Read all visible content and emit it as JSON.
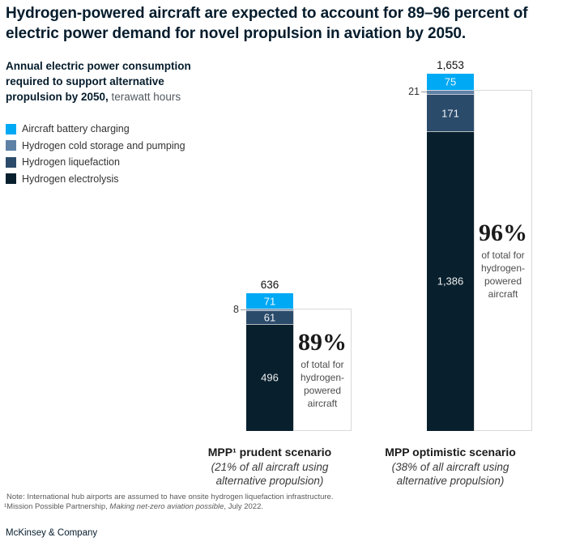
{
  "title": "Hydrogen-powered aircraft are expected to account for 89–96 percent of electric power demand for novel propulsion in aviation by 2050.",
  "subtitle": {
    "bold": "Annual electric power consumption required to support alternative propulsion by 2050,",
    "unit": " terawatt hours"
  },
  "legend": [
    {
      "name": "Aircraft battery charging",
      "color": "#00A9F4"
    },
    {
      "name": "Hydrogen cold storage and pumping",
      "color": "#5E81A6"
    },
    {
      "name": "Hydrogen liquefaction",
      "color": "#2B4B6B"
    },
    {
      "name": "Hydrogen electrolysis",
      "color": "#081F2D"
    }
  ],
  "chart_data": {
    "type": "bar",
    "stacked": true,
    "title": "Annual electric power consumption required to support alternative propulsion by 2050",
    "unit": "terawatt hours",
    "categories": [
      "MPP¹ prudent scenario",
      "MPP optimistic scenario"
    ],
    "category_notes": [
      "(21% of all aircraft using alternative propulsion)",
      "(38% of all aircraft using alternative propulsion)"
    ],
    "series": [
      {
        "name": "Aircraft battery charging",
        "color": "#00A9F4",
        "values": [
          71,
          75
        ],
        "labels": [
          "71",
          "75"
        ],
        "label_position": "inside"
      },
      {
        "name": "Hydrogen cold storage and pumping",
        "color": "#5E81A6",
        "values": [
          8,
          21
        ],
        "labels": [
          "8",
          "21"
        ],
        "label_position": "outside-left"
      },
      {
        "name": "Hydrogen liquefaction",
        "color": "#2B4B6B",
        "values": [
          61,
          171
        ],
        "labels": [
          "61",
          "171"
        ],
        "label_position": "inside"
      },
      {
        "name": "Hydrogen electrolysis",
        "color": "#081F2D",
        "values": [
          496,
          1386
        ],
        "labels": [
          "496",
          "1,386"
        ],
        "label_position": "inside"
      }
    ],
    "totals": [
      "636",
      "1,653"
    ],
    "annotations": [
      {
        "percent": "89%",
        "caption": "of total for hydrogen-powered aircraft"
      },
      {
        "percent": "96%",
        "caption": "of total for hydrogen-powered aircraft"
      }
    ],
    "ylim": [
      0,
      1653
    ],
    "grid": false,
    "legend_position": "top-left"
  },
  "footnote": {
    "line1": "Note: International hub airports are assumed to have onsite hydrogen liquefaction infrastructure.",
    "line2_pre": "¹Mission Possible Partnership, ",
    "line2_italic": "Making net-zero aviation possible",
    "line2_post": ", July 2022."
  },
  "footer": "McKinsey & Company"
}
